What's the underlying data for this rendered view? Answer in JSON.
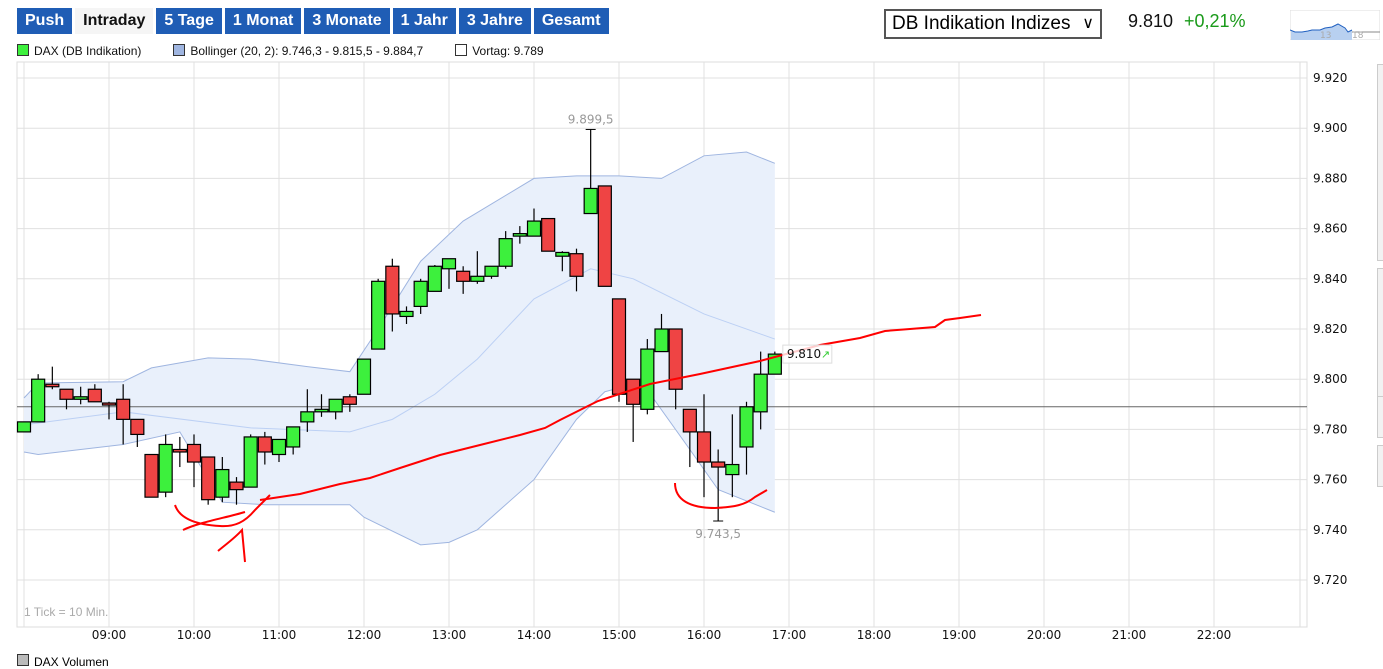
{
  "tabs": [
    {
      "label": "Push",
      "active": false
    },
    {
      "label": "Intraday",
      "active": true
    },
    {
      "label": "5 Tage",
      "active": false
    },
    {
      "label": "1 Monat",
      "active": false
    },
    {
      "label": "3 Monate",
      "active": false
    },
    {
      "label": "1 Jahr",
      "active": false
    },
    {
      "label": "3 Jahre",
      "active": false
    },
    {
      "label": "Gesamt",
      "active": false
    }
  ],
  "legend": {
    "dax": "DAX (DB Indikation)",
    "bollinger": "Bollinger (20, 2): 9.746,3 - 9.815,5 - 9.884,7",
    "vortag": "Vortag: 9.789"
  },
  "colors": {
    "up": "#3df03d",
    "down": "#ef4444",
    "band": "#e9f0fb",
    "band_line": "#9fb5e0",
    "accent": "#1f5db5",
    "positive": "#1a9a1a",
    "annotation": "#ff0000"
  },
  "selector": {
    "value": "DB Indikation Indizes"
  },
  "quote": {
    "price": "9.810",
    "change": "+0,21%"
  },
  "thumbnail": {
    "labels": [
      "13",
      "18"
    ]
  },
  "footer": {
    "tick_note": "1 Tick = 10 Min.",
    "volume_label": "DAX Volumen"
  },
  "chart_data": {
    "type": "candlestick",
    "interval_minutes": 10,
    "x_ticks": [
      "09:00",
      "10:00",
      "11:00",
      "12:00",
      "13:00",
      "14:00",
      "15:00",
      "16:00",
      "17:00",
      "18:00",
      "19:00",
      "20:00",
      "21:00",
      "22:00"
    ],
    "y_ticks": [
      "9.720",
      "9.740",
      "9.760",
      "9.780",
      "9.800",
      "9.820",
      "9.840",
      "9.860",
      "9.880",
      "9.900",
      "9.920"
    ],
    "ylim": [
      9712,
      9926
    ],
    "xlim": [
      "08:00",
      "23:05"
    ],
    "grid": true,
    "reference_line": {
      "label": "Vortag",
      "value": 9789
    },
    "last_price_label": {
      "text": "9.810",
      "value": 9810
    },
    "annotations": [
      {
        "text": "9.899,5",
        "time": "14:40",
        "value": 9899.5
      },
      {
        "text": "9.743,5",
        "time": "16:10",
        "value": 9743.5
      }
    ],
    "candles": [
      {
        "t": "08:00",
        "o": 9779,
        "h": 9783,
        "l": 9779,
        "c": 9783
      },
      {
        "t": "08:10",
        "o": 9783,
        "h": 9802,
        "l": 9783,
        "c": 9800
      },
      {
        "t": "08:20",
        "o": 9798,
        "h": 9805,
        "l": 9796,
        "c": 9797
      },
      {
        "t": "08:30",
        "o": 9796,
        "h": 9796,
        "l": 9788,
        "c": 9792
      },
      {
        "t": "08:40",
        "o": 9792,
        "h": 9797,
        "l": 9790,
        "c": 9793
      },
      {
        "t": "08:50",
        "o": 9796,
        "h": 9798,
        "l": 9791,
        "c": 9791
      },
      {
        "t": "09:00",
        "o": 9790.5,
        "h": 9791,
        "l": 9784,
        "c": 9790
      },
      {
        "t": "09:10",
        "o": 9792,
        "h": 9798,
        "l": 9774,
        "c": 9784
      },
      {
        "t": "09:20",
        "o": 9784,
        "h": 9784,
        "l": 9773,
        "c": 9778
      },
      {
        "t": "09:30",
        "o": 9770,
        "h": 9770,
        "l": 9753,
        "c": 9753
      },
      {
        "t": "09:40",
        "o": 9755,
        "h": 9778,
        "l": 9753,
        "c": 9774
      },
      {
        "t": "09:50",
        "o": 9772,
        "h": 9777,
        "l": 9765,
        "c": 9771
      },
      {
        "t": "10:00",
        "o": 9774,
        "h": 9778,
        "l": 9757,
        "c": 9767
      },
      {
        "t": "10:10",
        "o": 9769,
        "h": 9769,
        "l": 9750,
        "c": 9752
      },
      {
        "t": "10:20",
        "o": 9753,
        "h": 9769,
        "l": 9751,
        "c": 9764
      },
      {
        "t": "10:30",
        "o": 9759,
        "h": 9761,
        "l": 9750,
        "c": 9756
      },
      {
        "t": "10:40",
        "o": 9757,
        "h": 9778,
        "l": 9757,
        "c": 9777
      },
      {
        "t": "10:50",
        "o": 9777,
        "h": 9779,
        "l": 9766,
        "c": 9771
      },
      {
        "t": "11:00",
        "o": 9770,
        "h": 9776,
        "l": 9767,
        "c": 9776
      },
      {
        "t": "11:10",
        "o": 9773,
        "h": 9781,
        "l": 9770,
        "c": 9781
      },
      {
        "t": "11:20",
        "o": 9783,
        "h": 9796,
        "l": 9779,
        "c": 9787
      },
      {
        "t": "11:30",
        "o": 9787,
        "h": 9794,
        "l": 9785,
        "c": 9788
      },
      {
        "t": "11:40",
        "o": 9787,
        "h": 9792,
        "l": 9784,
        "c": 9792
      },
      {
        "t": "11:50",
        "o": 9793,
        "h": 9794,
        "l": 9787,
        "c": 9790
      },
      {
        "t": "12:00",
        "o": 9794,
        "h": 9808,
        "l": 9794,
        "c": 9808
      },
      {
        "t": "12:10",
        "o": 9812,
        "h": 9840,
        "l": 9812,
        "c": 9839
      },
      {
        "t": "12:20",
        "o": 9845,
        "h": 9848,
        "l": 9819,
        "c": 9826
      },
      {
        "t": "12:30",
        "o": 9825,
        "h": 9829,
        "l": 9822,
        "c": 9827
      },
      {
        "t": "12:40",
        "o": 9829,
        "h": 9840,
        "l": 9826,
        "c": 9839
      },
      {
        "t": "12:50",
        "o": 9835,
        "h": 9845.5,
        "l": 9835,
        "c": 9845
      },
      {
        "t": "13:00",
        "o": 9844,
        "h": 9848,
        "l": 9836,
        "c": 9848
      },
      {
        "t": "13:10",
        "o": 9843,
        "h": 9845,
        "l": 9834,
        "c": 9839
      },
      {
        "t": "13:20",
        "o": 9839,
        "h": 9851,
        "l": 9838,
        "c": 9841
      },
      {
        "t": "13:30",
        "o": 9841,
        "h": 9845,
        "l": 9840,
        "c": 9845
      },
      {
        "t": "13:40",
        "o": 9845,
        "h": 9859,
        "l": 9844,
        "c": 9856
      },
      {
        "t": "13:50",
        "o": 9857,
        "h": 9861,
        "l": 9854,
        "c": 9858
      },
      {
        "t": "14:00",
        "o": 9857,
        "h": 9868,
        "l": 9857,
        "c": 9863
      },
      {
        "t": "14:10",
        "o": 9864,
        "h": 9864,
        "l": 9851,
        "c": 9851
      },
      {
        "t": "14:20",
        "o": 9849,
        "h": 9851,
        "l": 9843,
        "c": 9850.5
      },
      {
        "t": "14:30",
        "o": 9850,
        "h": 9852,
        "l": 9835,
        "c": 9841
      },
      {
        "t": "14:40",
        "o": 9866,
        "h": 9899.5,
        "l": 9866,
        "c": 9876
      },
      {
        "t": "14:50",
        "o": 9877,
        "h": 9877,
        "l": 9837,
        "c": 9837
      },
      {
        "t": "15:00",
        "o": 9832,
        "h": 9832,
        "l": 9791,
        "c": 9794
      },
      {
        "t": "15:10",
        "o": 9800,
        "h": 9800,
        "l": 9775,
        "c": 9790
      },
      {
        "t": "15:20",
        "o": 9788,
        "h": 9816,
        "l": 9786,
        "c": 9812
      },
      {
        "t": "15:30",
        "o": 9811,
        "h": 9826,
        "l": 9811,
        "c": 9820
      },
      {
        "t": "15:40",
        "o": 9820,
        "h": 9820,
        "l": 9788,
        "c": 9796
      },
      {
        "t": "15:50",
        "o": 9788,
        "h": 9788,
        "l": 9765,
        "c": 9779
      },
      {
        "t": "16:00",
        "o": 9779,
        "h": 9794,
        "l": 9753,
        "c": 9767
      },
      {
        "t": "16:10",
        "o": 9767,
        "h": 9772,
        "l": 9743.5,
        "c": 9765
      },
      {
        "t": "16:20",
        "o": 9762,
        "h": 9786,
        "l": 9753,
        "c": 9766
      },
      {
        "t": "16:30",
        "o": 9773,
        "h": 9791,
        "l": 9762,
        "c": 9789
      },
      {
        "t": "16:40",
        "o": 9787,
        "h": 9811,
        "l": 9780,
        "c": 9802
      },
      {
        "t": "16:50",
        "o": 9802,
        "h": 9811,
        "l": 9802,
        "c": 9810
      }
    ],
    "bollinger": {
      "upper": [
        [
          "08:00",
          9792.5
        ],
        [
          "08:10",
          9798.5
        ],
        [
          "09:10",
          9799
        ],
        [
          "09:30",
          9804.5
        ],
        [
          "10:10",
          9808.5
        ],
        [
          "10:40",
          9808
        ],
        [
          "11:20",
          9805
        ],
        [
          "11:50",
          9803
        ],
        [
          "12:10",
          9820
        ],
        [
          "12:40",
          9847
        ],
        [
          "13:10",
          9863
        ],
        [
          "14:00",
          9880
        ],
        [
          "14:30",
          9881
        ],
        [
          "15:00",
          9881
        ],
        [
          "15:30",
          9880
        ],
        [
          "16:00",
          9889
        ],
        [
          "16:30",
          9890.5
        ],
        [
          "16:50",
          9886
        ]
      ],
      "middle": [
        [
          "08:00",
          9781.8
        ],
        [
          "09:10",
          9787
        ],
        [
          "10:40",
          9780.6
        ],
        [
          "11:50",
          9779
        ],
        [
          "12:20",
          9784
        ],
        [
          "12:50",
          9794
        ],
        [
          "13:20",
          9808
        ],
        [
          "14:00",
          9832
        ],
        [
          "14:40",
          9844
        ],
        [
          "15:10",
          9840
        ],
        [
          "16:00",
          9826
        ],
        [
          "16:50",
          9816
        ]
      ],
      "lower": [
        [
          "08:00",
          9771
        ],
        [
          "08:10",
          9770
        ],
        [
          "09:10",
          9774
        ],
        [
          "09:50",
          9779
        ],
        [
          "10:20",
          9751
        ],
        [
          "10:50",
          9750
        ],
        [
          "11:50",
          9750
        ],
        [
          "12:00",
          9745
        ],
        [
          "12:40",
          9734
        ],
        [
          "13:00",
          9735
        ],
        [
          "13:20",
          9740
        ],
        [
          "14:00",
          9760
        ],
        [
          "14:30",
          9784
        ],
        [
          "14:50",
          9795
        ],
        [
          "15:00",
          9796.5
        ],
        [
          "15:20",
          9795.7
        ],
        [
          "15:50",
          9772
        ],
        [
          "16:10",
          9756
        ],
        [
          "16:50",
          9747
        ]
      ]
    }
  }
}
